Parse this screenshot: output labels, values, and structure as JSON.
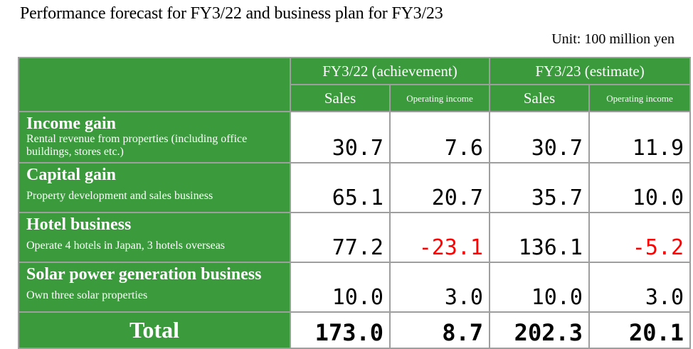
{
  "title": "Performance forecast for FY3/22 and business plan for FY3/23",
  "unit": "Unit: 100 million yen",
  "headers": {
    "period1": "FY3/22 (achievement)",
    "period2": "FY3/23 (estimate)",
    "sales": "Sales",
    "operating_income": "Operating income"
  },
  "rows": [
    {
      "name": "Income gain",
      "desc": "Rental revenue from properties (including office buildings, stores etc.)",
      "v": [
        "30.7",
        "7.6",
        "30.7",
        "11.9"
      ]
    },
    {
      "name": "Capital gain",
      "desc": "Property development and sales business",
      "v": [
        "65.1",
        "20.7",
        "35.7",
        "10.0"
      ]
    },
    {
      "name": "Hotel business",
      "desc": "Operate 4 hotels in Japan, 3 hotels overseas",
      "v": [
        "77.2",
        "-23.1",
        "136.1",
        "-5.2"
      ]
    },
    {
      "name": "Solar power generation business",
      "desc": "Own three solar properties",
      "v": [
        "10.0",
        "3.0",
        "10.0",
        "3.0"
      ]
    }
  ],
  "total": {
    "label": "Total",
    "v": [
      "173.0",
      "8.7",
      "202.3",
      "20.1"
    ]
  },
  "colors": {
    "header_green": "#3a9a3c",
    "negative": "#ff0000"
  }
}
